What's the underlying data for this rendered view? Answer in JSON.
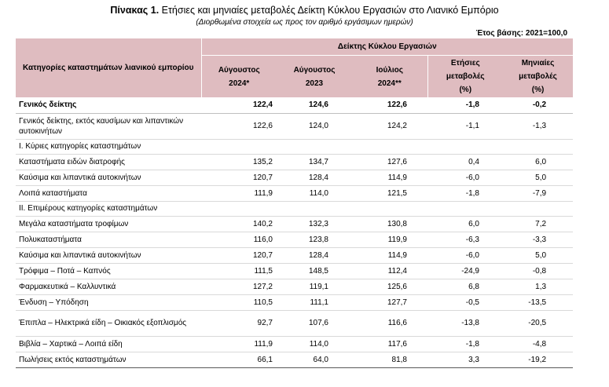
{
  "title": {
    "prefix": "Πίνακας 1.",
    "text": "Ετήσιες και μηνιαίες μεταβολές Δείκτη Κύκλου Εργασιών στο Λιανικό Εμπόριο"
  },
  "subtitle": "(Διορθωμένα στοιχεία ως προς τον αριθμό εργάσιμων ημερών)",
  "base_year": "Έτος βάσης: 2021=100,0",
  "header": {
    "category": "Κατηγορίες καταστημάτων λιανικού εμπορίου",
    "group": "Δείκτης Κύκλου Εργασιών",
    "col1": "Αύγουστος 2024*",
    "col1_a": "Αύγουστος",
    "col1_b": "2024*",
    "col2_a": "Αύγουστος",
    "col2_b": "2023",
    "col3_a": "Ιούλιος",
    "col3_b": "2024**",
    "col4_a": "Ετήσιες",
    "col4_b": "μεταβολές",
    "col4_c": "(%)",
    "col5_a": "Μηνιαίες",
    "col5_b": "μεταβολές",
    "col5_c": "(%)"
  },
  "rows": [
    {
      "label": "Γενικός δείκτης",
      "v1": "122,4",
      "v2": "124,6",
      "v3": "122,6",
      "v4": "-1,8",
      "v5": "-0,2"
    },
    {
      "label": "Γενικός δείκτης, εκτός καυσίμων και λιπαντικών αυτοκινήτων",
      "v1": "122,6",
      "v2": "124,0",
      "v3": "124,2",
      "v4": "-1,1",
      "v5": "-1,3"
    },
    {
      "label": "Ι. Κύριες κατηγορίες καταστημάτων",
      "v1": "",
      "v2": "",
      "v3": "",
      "v4": "",
      "v5": ""
    },
    {
      "label": "Καταστήματα ειδών διατροφής",
      "v1": "135,2",
      "v2": "134,7",
      "v3": "127,6",
      "v4": "0,4",
      "v5": "6,0"
    },
    {
      "label": "Καύσιμα και λιπαντικά αυτοκινήτων",
      "v1": "120,7",
      "v2": "128,4",
      "v3": "114,9",
      "v4": "-6,0",
      "v5": "5,0"
    },
    {
      "label": "Λοιπά καταστήματα",
      "v1": "111,9",
      "v2": "114,0",
      "v3": "121,5",
      "v4": "-1,8",
      "v5": "-7,9"
    },
    {
      "label": "ΙΙ. Επιμέρους κατηγορίες καταστημάτων",
      "v1": "",
      "v2": "",
      "v3": "",
      "v4": "",
      "v5": ""
    },
    {
      "label": "Μεγάλα καταστήματα τροφίμων",
      "v1": "140,2",
      "v2": "132,3",
      "v3": "130,8",
      "v4": "6,0",
      "v5": "7,2"
    },
    {
      "label": "Πολυκαταστήματα",
      "v1": "116,0",
      "v2": "123,8",
      "v3": "119,9",
      "v4": "-6,3",
      "v5": "-3,3"
    },
    {
      "label": "Καύσιμα και λιπαντικά αυτοκινήτων",
      "v1": "120,7",
      "v2": "128,4",
      "v3": "114,9",
      "v4": "-6,0",
      "v5": "5,0"
    },
    {
      "label": "Τρόφιμα – Ποτά – Καπνός",
      "v1": "111,5",
      "v2": "148,5",
      "v3": "112,4",
      "v4": "-24,9",
      "v5": "-0,8"
    },
    {
      "label": "Φαρμακευτικά – Καλλυντικά",
      "v1": "127,2",
      "v2": "119,1",
      "v3": "125,6",
      "v4": "6,8",
      "v5": "1,3"
    },
    {
      "label": "Ένδυση – Υπόδηση",
      "v1": "110,5",
      "v2": "111,1",
      "v3": "127,7",
      "v4": "-0,5",
      "v5": "-13,5"
    },
    {
      "label": "Έπιπλα – Ηλεκτρικά είδη – Οικιακός εξοπλισμός",
      "v1": "92,7",
      "v2": "107,6",
      "v3": "116,6",
      "v4": "-13,8",
      "v5": "-20,5"
    },
    {
      "label": "Βιβλία – Χαρτικά – Λοιπά είδη",
      "v1": "111,9",
      "v2": "114,0",
      "v3": "117,6",
      "v4": "-1,8",
      "v5": "-4,8"
    },
    {
      "label": "Πωλήσεις εκτός καταστημάτων",
      "v1": "66,1",
      "v2": "64,0",
      "v3": "81,8",
      "v4": "3,3",
      "v5": "-19,2"
    }
  ]
}
